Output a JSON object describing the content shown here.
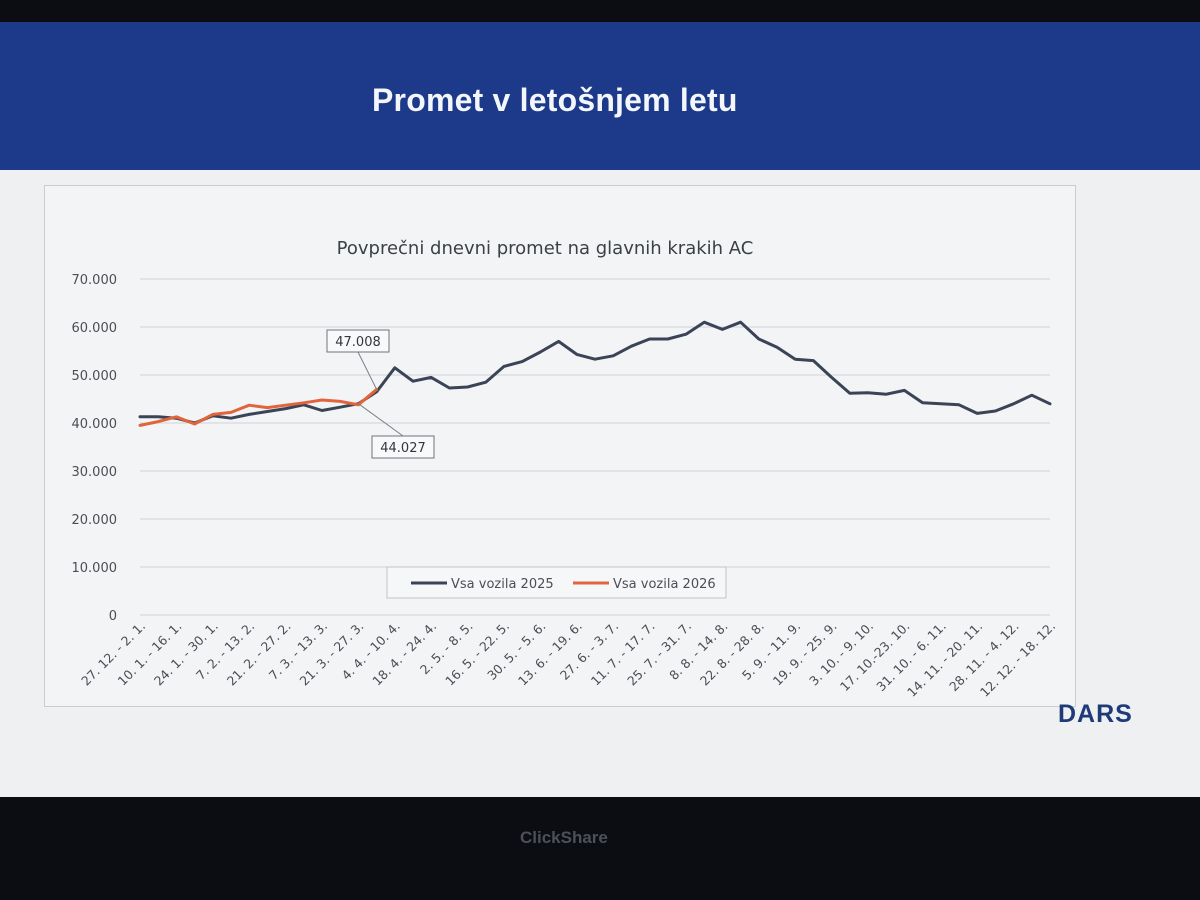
{
  "slide": {
    "title": "Promet v letošnjem letu"
  },
  "logo": {
    "text": "DARS"
  },
  "bezel": {
    "brand": "ClickShare"
  },
  "chart_data": {
    "type": "line",
    "title": "Povprečni dnevni promet na glavnih krakih AC",
    "xlabel": "",
    "ylabel": "",
    "ylim": [
      0,
      70000
    ],
    "yticks": [
      0,
      10000,
      20000,
      30000,
      40000,
      50000,
      60000,
      70000
    ],
    "ytick_labels": [
      "0",
      "10.000",
      "20.000",
      "30.000",
      "40.000",
      "50.000",
      "60.000",
      "70.000"
    ],
    "grid": true,
    "legend_position": "bottom-center",
    "x_labels": [
      "27. 12. - 2. 1.",
      "10. 1. - 16. 1.",
      "24. 1. - 30. 1.",
      "7. 2. - 13. 2.",
      "21. 2. - 27. 2.",
      "7. 3. - 13. 3.",
      "21. 3. - 27. 3.",
      "4. 4. - 10. 4.",
      "18. 4. - 24. 4.",
      "2. 5. - 8. 5.",
      "16. 5. - 22. 5.",
      "30. 5. - 5. 6.",
      "13. 6. - 19. 6.",
      "27. 6. - 3. 7.",
      "11. 7. - 17. 7.",
      "25. 7. - 31. 7.",
      "8. 8. - 14. 8.",
      "22. 8. - 28. 8.",
      "5. 9. - 11. 9.",
      "19. 9. - 25. 9.",
      "3. 10. - 9. 10.",
      "17. 10.-23. 10.",
      "31. 10. - 6. 11.",
      "14. 11. - 20. 11.",
      "28. 11. - 4. 12.",
      "12. 12. - 18. 12."
    ],
    "series": [
      {
        "name": "Vsa vozila 2025",
        "color": "#3a4456",
        "values": [
          41300,
          41300,
          41000,
          40000,
          41500,
          41000,
          41800,
          42400,
          43000,
          43800,
          42600,
          43300,
          44027,
          46500,
          51500,
          48700,
          49500,
          47300,
          47500,
          48500,
          51800,
          52800,
          54800,
          57000,
          54300,
          53300,
          54000,
          56000,
          57500,
          57500,
          58500,
          61000,
          59500,
          61000,
          57500,
          55800,
          53300,
          53000,
          49500,
          46200,
          46300,
          46000,
          46800,
          44200,
          44000,
          43800,
          42000,
          42500,
          44000,
          45800,
          44000
        ]
      },
      {
        "name": "Vsa vozila 2026",
        "color": "#e2643c",
        "values": [
          39500,
          40300,
          41300,
          39800,
          41800,
          42200,
          43700,
          43200,
          43700,
          44200,
          44800,
          44500,
          43800,
          47008
        ]
      }
    ],
    "annotations": [
      {
        "text": "47.008",
        "series": "Vsa vozila 2026",
        "index": 13
      },
      {
        "text": "44.027",
        "series": "Vsa vozila 2025",
        "index": 12
      }
    ]
  }
}
